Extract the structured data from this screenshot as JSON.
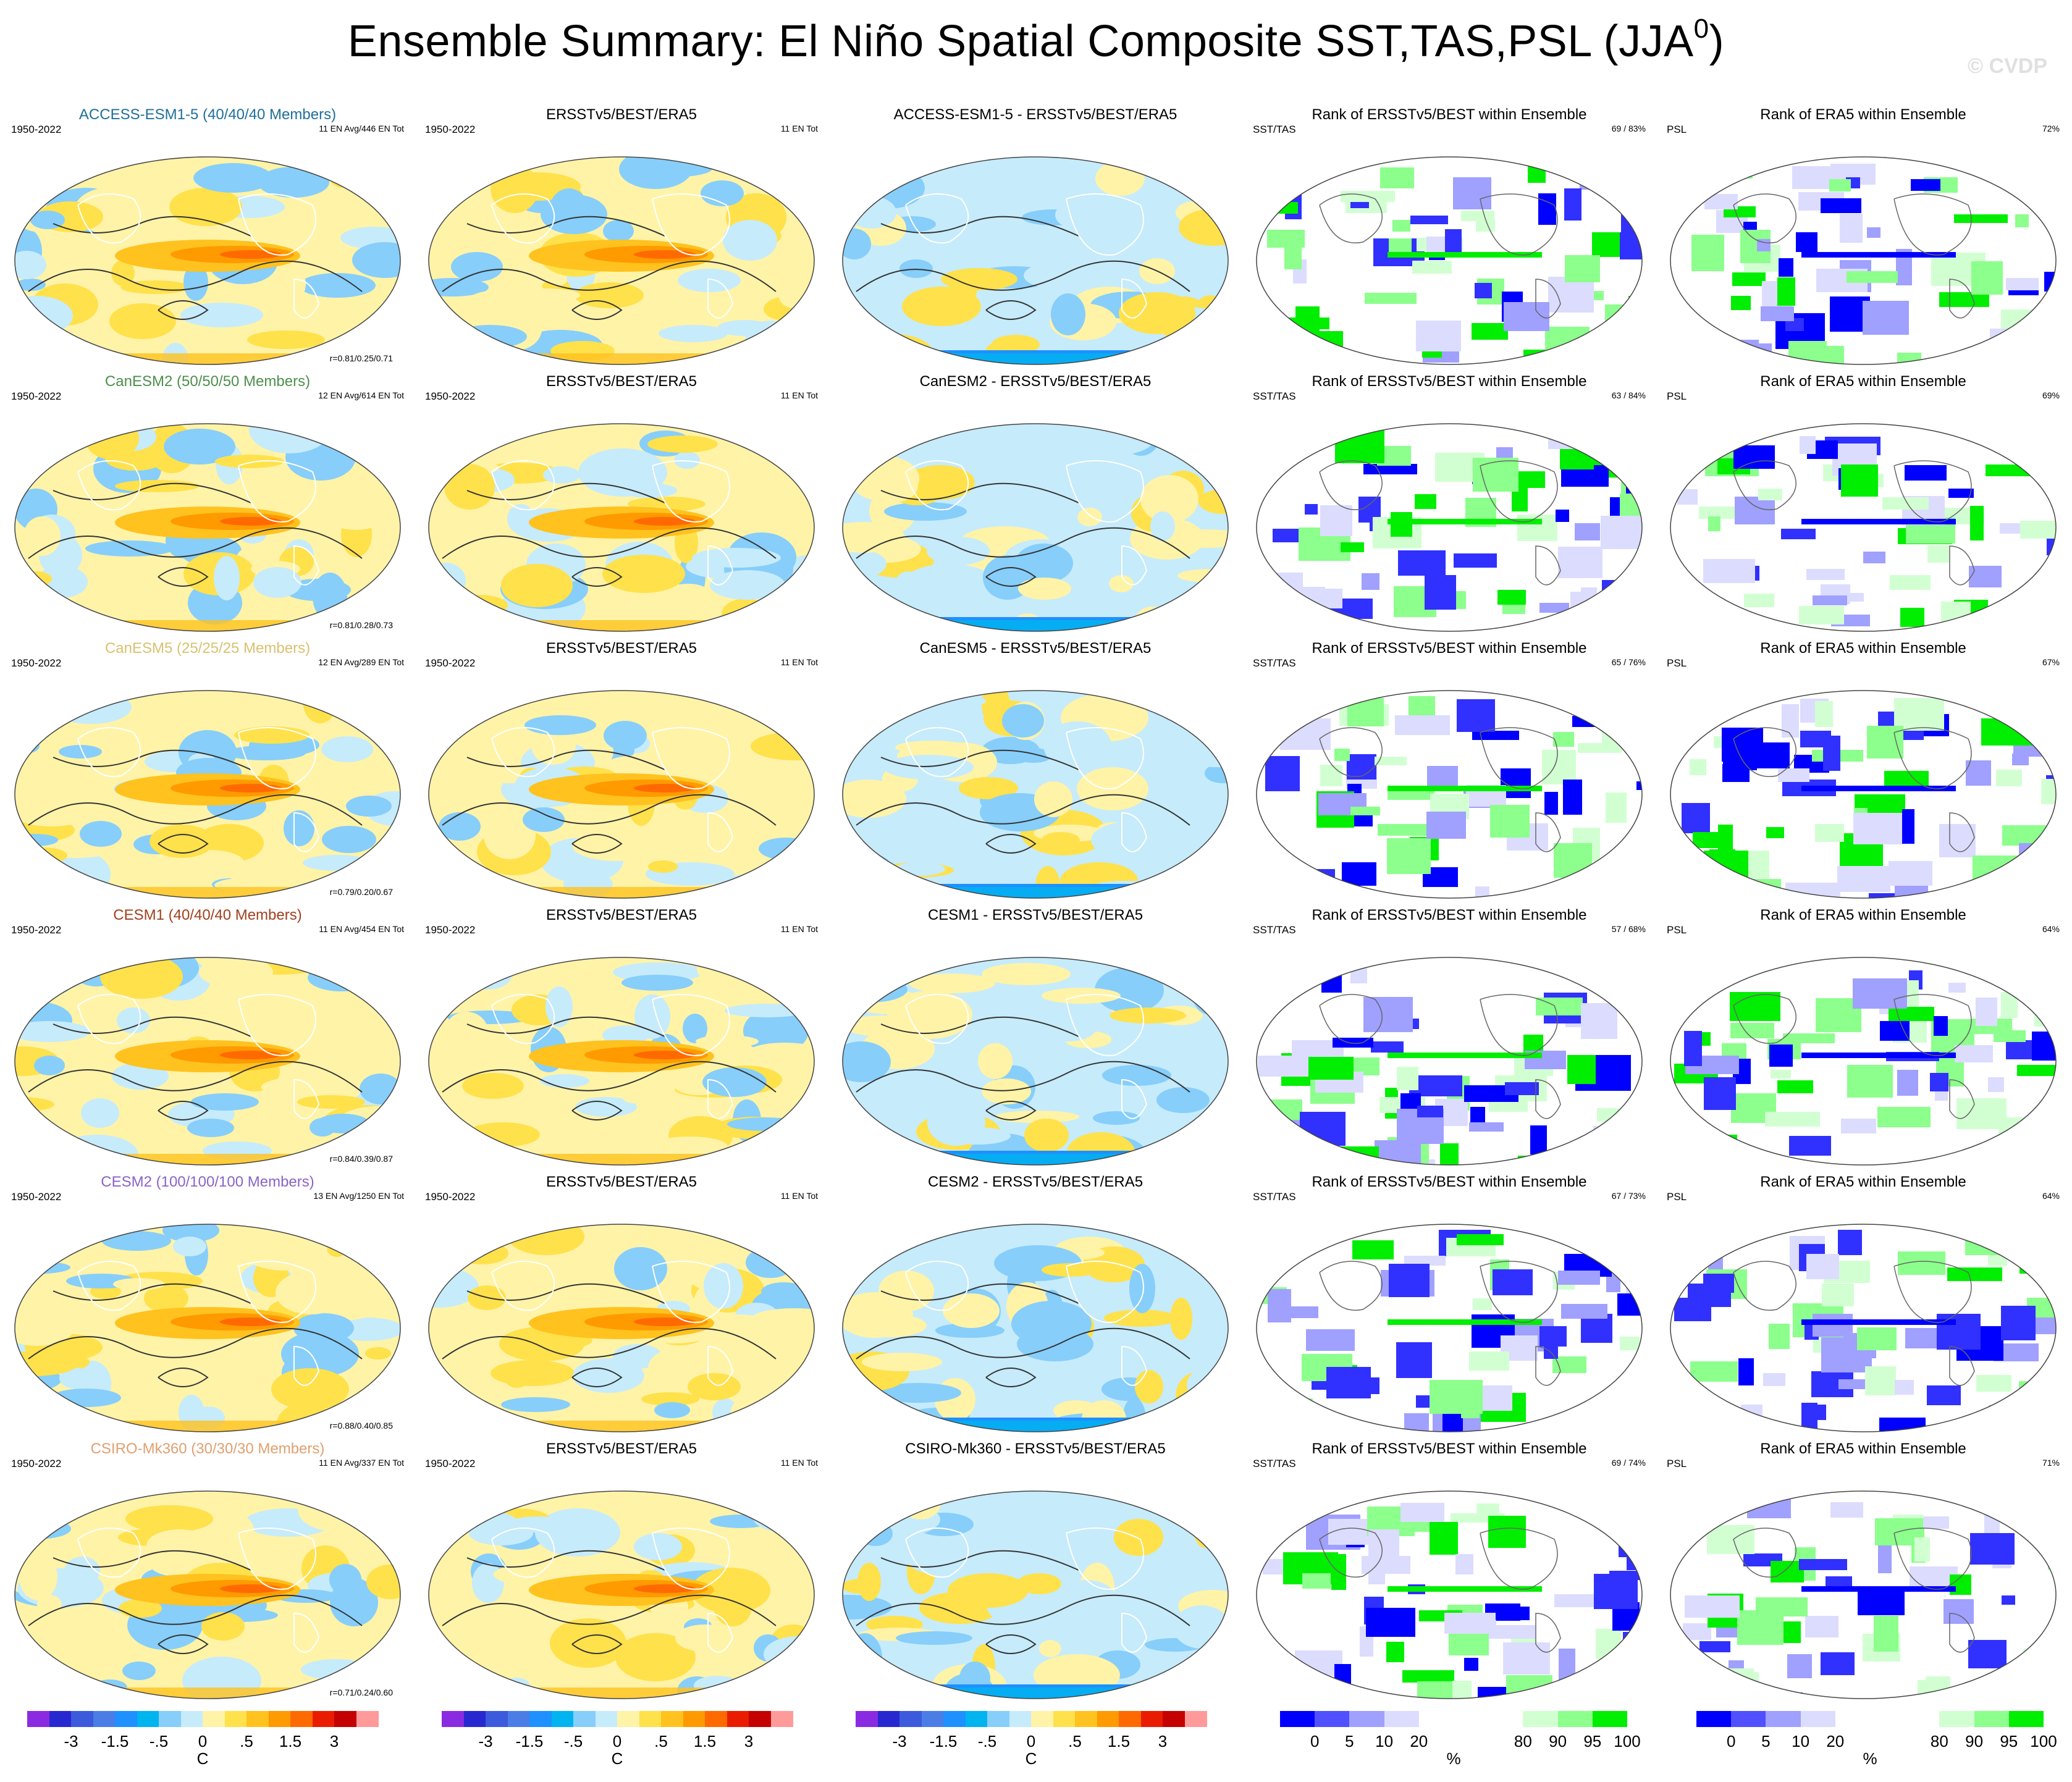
{
  "title": "Ensemble Summary: El Niño Spatial Composite SST,TAS,PSL (JJA",
  "title_sup": "0",
  "title_close": ")",
  "watermark": "© CVDP",
  "columns": [
    {
      "kind": "model",
      "title_suffix": ""
    },
    {
      "kind": "obs",
      "title": "ERSSTv5/BEST/ERA5"
    },
    {
      "kind": "diff",
      "title_suffix": " - ERSSTv5/BEST/ERA5"
    },
    {
      "kind": "rank",
      "title": "Rank of ERSSTv5/BEST within Ensemble",
      "left": "SST/TAS"
    },
    {
      "kind": "rank2",
      "title": "Rank of ERA5 within Ensemble",
      "left": "PSL"
    }
  ],
  "period": "1950-2022",
  "obs_count": "11 EN Tot",
  "rows": [
    {
      "model": "ACCESS-ESM1-5",
      "members": "(40/40/40 Members)",
      "color": "#1f6f9a",
      "avg": "11 EN Avg/446 EN Tot",
      "corr": "r=0.81/0.25/0.71",
      "rank_sst": "69 /  83%",
      "rank_psl": "72%"
    },
    {
      "model": "CanESM2",
      "members": "(50/50/50 Members)",
      "color": "#4d8f4d",
      "avg": "12 EN Avg/614 EN Tot",
      "corr": "r=0.81/0.28/0.73",
      "rank_sst": "63 /  84%",
      "rank_psl": "69%"
    },
    {
      "model": "CanESM5",
      "members": "(25/25/25 Members)",
      "color": "#d9c270",
      "avg": "12 EN Avg/289 EN Tot",
      "corr": "r=0.79/0.20/0.67",
      "rank_sst": "65 /  76%",
      "rank_psl": "67%"
    },
    {
      "model": "CESM1",
      "members": "(40/40/40 Members)",
      "color": "#a0401e",
      "avg": "11 EN Avg/454 EN Tot",
      "corr": "r=0.84/0.39/0.87",
      "rank_sst": "57 /  68%",
      "rank_psl": "64%"
    },
    {
      "model": "CESM2",
      "members": "(100/100/100 Members)",
      "color": "#8a63c8",
      "avg": "13 EN Avg/1250 EN Tot",
      "corr": "r=0.88/0.40/0.85",
      "rank_sst": "67 /  73%",
      "rank_psl": "64%"
    },
    {
      "model": "CSIRO-Mk360",
      "members": "(30/30/30 Members)",
      "color": "#e0a070",
      "avg": "11 EN Avg/337 EN Tot",
      "corr": "r=0.71/0.24/0.60",
      "rank_sst": "69 /  74%",
      "rank_psl": "71%"
    }
  ],
  "colorbars": {
    "temp": {
      "colors": [
        "#8a2be2",
        "#2828d0",
        "#3c5adc",
        "#4a7ee6",
        "#1e90ff",
        "#00b4f0",
        "#87cefa",
        "#c6ebfb",
        "#fff3a8",
        "#ffe14b",
        "#ffc21e",
        "#ff9a00",
        "#ff6a00",
        "#ea1c00",
        "#c40000",
        "#ff9a9a"
      ],
      "ticks": [
        "-3",
        "-1.5",
        "-.5",
        "0",
        ".5",
        "1.5",
        "3"
      ],
      "tick_index": [
        2,
        4,
        6,
        8,
        10,
        12,
        14
      ],
      "unit": "C"
    },
    "rank": {
      "colors": [
        "#0000ff",
        "#5050ff",
        "#a0a0ff",
        "#dcdcff",
        "#ffffff",
        "#ffffff",
        "#ffffff",
        "#d2ffd2",
        "#8cff8c",
        "#00ee00"
      ],
      "ticks": [
        "0",
        "5",
        "10",
        "20",
        "80",
        "90",
        "95",
        "100"
      ],
      "tick_index": [
        1,
        2,
        3,
        4,
        7,
        8,
        9,
        10
      ],
      "unit": "%"
    }
  }
}
